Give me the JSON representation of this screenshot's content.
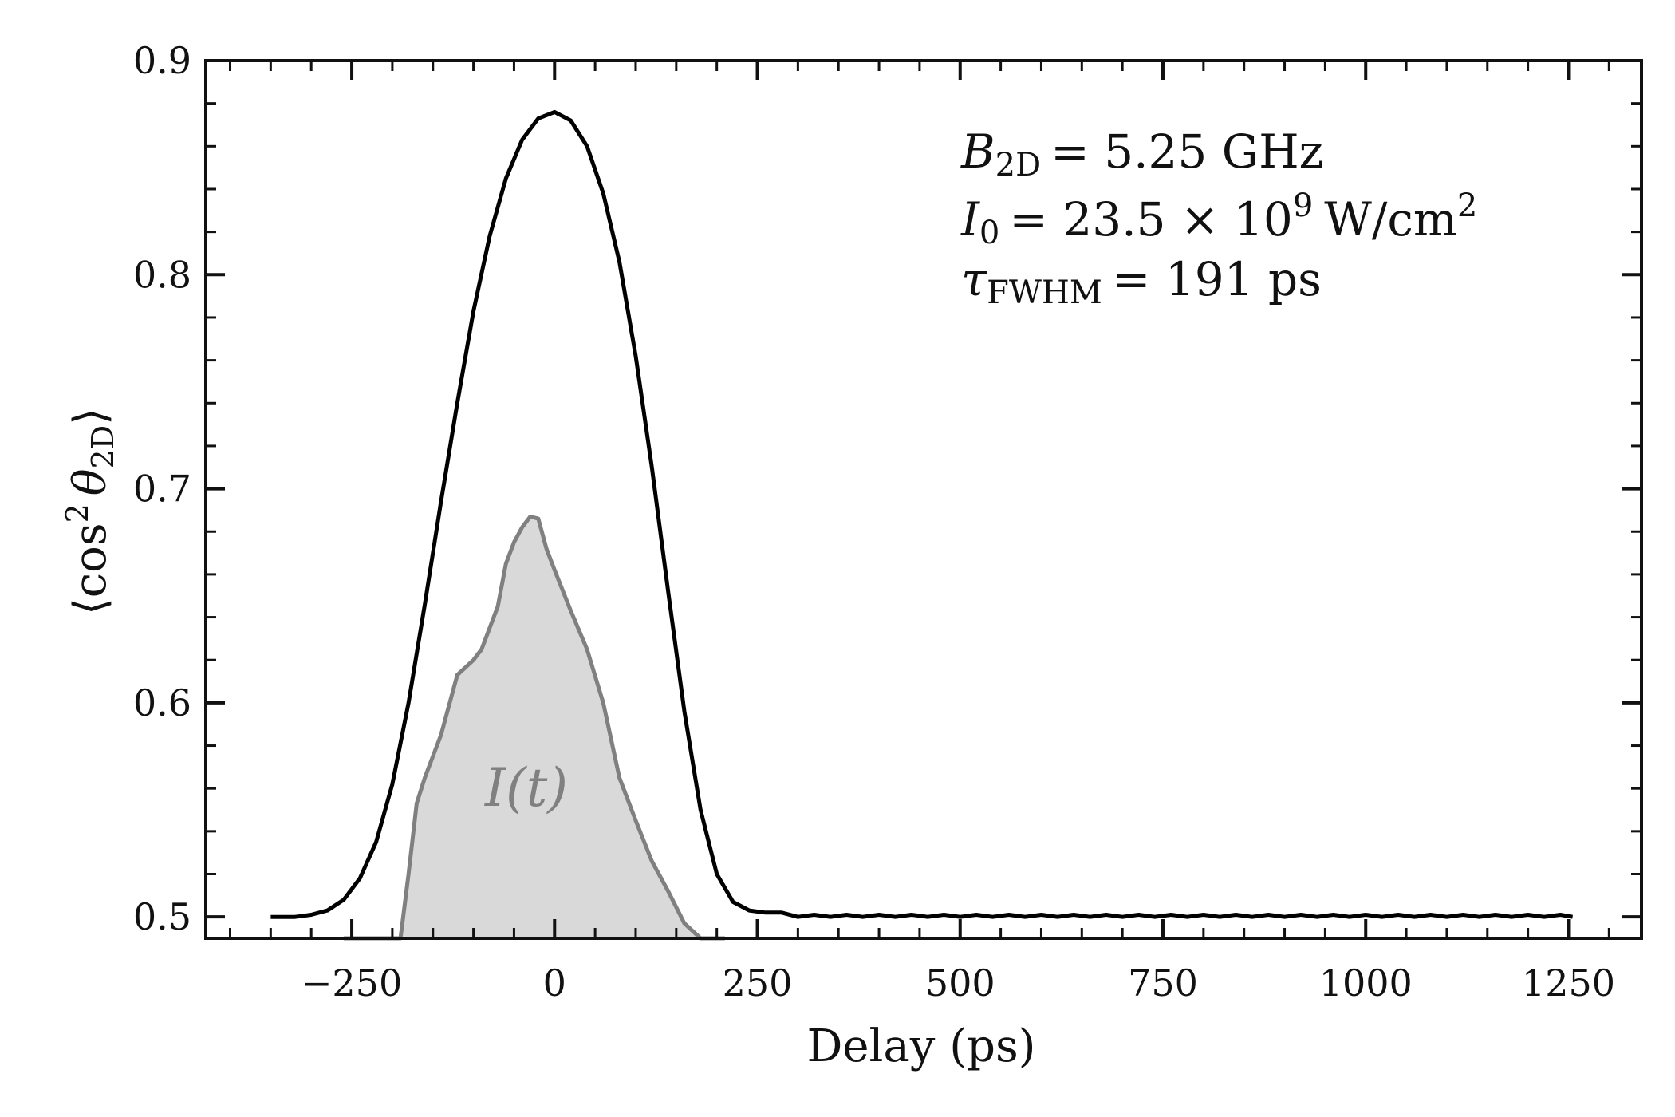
{
  "chart_data": {
    "type": "line",
    "xlabel": "Delay (ps)",
    "ylabel_parts": {
      "open": "⟨",
      "func": "cos",
      "power": "2",
      "symbol": "θ",
      "sub": "2D",
      "close": "⟩"
    },
    "xlim": [
      -430,
      1340
    ],
    "ylim": [
      0.49,
      0.9
    ],
    "x_ticks": [
      -250,
      0,
      250,
      500,
      750,
      1000,
      1250
    ],
    "x_tick_labels": [
      "−250",
      "0",
      "250",
      "500",
      "750",
      "1000",
      "1250"
    ],
    "y_ticks": [
      0.5,
      0.6,
      0.7,
      0.8,
      0.9
    ],
    "y_tick_labels": [
      "0.5",
      "0.6",
      "0.7",
      "0.8",
      "0.9"
    ],
    "grid": false,
    "annotations": {
      "line1": {
        "symbol": "B",
        "sub": "2D",
        "rest": "= 5.25 GHz"
      },
      "line2": {
        "symbol": "I",
        "sub": "0",
        "rest": "= 23.5 × 10",
        "sup": "9",
        "unit": "W/cm",
        "unit_sup": "2"
      },
      "line3": {
        "symbol": "τ",
        "sub": "FWHM",
        "rest": "= 191 ps"
      }
    },
    "intensity_label": "I(t)",
    "colors": {
      "alignment": "#000000",
      "intensity_line": "#808080",
      "intensity_fill": "#d9d9d9"
    },
    "series": [
      {
        "style": "line",
        "x": [
          -350,
          -320,
          -300,
          -280,
          -260,
          -240,
          -220,
          -200,
          -180,
          -160,
          -140,
          -120,
          -100,
          -80,
          -60,
          -40,
          -20,
          0,
          20,
          40,
          60,
          80,
          100,
          120,
          140,
          160,
          180,
          200,
          220,
          240,
          260,
          280,
          300,
          320,
          340,
          360,
          380,
          400,
          420,
          440,
          460,
          480,
          500,
          520,
          540,
          560,
          580,
          600,
          620,
          640,
          660,
          680,
          700,
          720,
          740,
          760,
          780,
          800,
          820,
          840,
          860,
          880,
          900,
          920,
          940,
          960,
          980,
          1000,
          1020,
          1040,
          1060,
          1080,
          1100,
          1120,
          1140,
          1160,
          1180,
          1200,
          1220,
          1240,
          1255
        ],
        "y": [
          0.5,
          0.5,
          0.501,
          0.503,
          0.508,
          0.518,
          0.535,
          0.562,
          0.6,
          0.646,
          0.694,
          0.74,
          0.783,
          0.818,
          0.845,
          0.863,
          0.873,
          0.876,
          0.872,
          0.86,
          0.838,
          0.806,
          0.762,
          0.71,
          0.652,
          0.596,
          0.55,
          0.52,
          0.507,
          0.503,
          0.502,
          0.502,
          0.5,
          0.501,
          0.5,
          0.501,
          0.5,
          0.501,
          0.5,
          0.501,
          0.5,
          0.501,
          0.5,
          0.501,
          0.5,
          0.501,
          0.5,
          0.501,
          0.5,
          0.501,
          0.5,
          0.501,
          0.5,
          0.501,
          0.5,
          0.501,
          0.5,
          0.501,
          0.5,
          0.501,
          0.5,
          0.501,
          0.5,
          0.501,
          0.5,
          0.501,
          0.5,
          0.501,
          0.5,
          0.501,
          0.5,
          0.501,
          0.5,
          0.501,
          0.5,
          0.501,
          0.5,
          0.501,
          0.5,
          0.501,
          0.5
        ]
      },
      {
        "style": "filled-area",
        "x": [
          -260,
          -190,
          -180,
          -170,
          -160,
          -140,
          -120,
          -100,
          -90,
          -80,
          -70,
          -60,
          -50,
          -40,
          -30,
          -20,
          -10,
          0,
          20,
          40,
          60,
          80,
          100,
          120,
          140,
          160,
          180,
          200,
          210
        ],
        "y": [
          0.49,
          0.49,
          0.52,
          0.553,
          0.565,
          0.585,
          0.613,
          0.62,
          0.625,
          0.635,
          0.645,
          0.665,
          0.675,
          0.682,
          0.687,
          0.686,
          0.672,
          0.662,
          0.643,
          0.625,
          0.6,
          0.565,
          0.545,
          0.526,
          0.512,
          0.497,
          0.49,
          0.49,
          0.49
        ]
      }
    ]
  }
}
